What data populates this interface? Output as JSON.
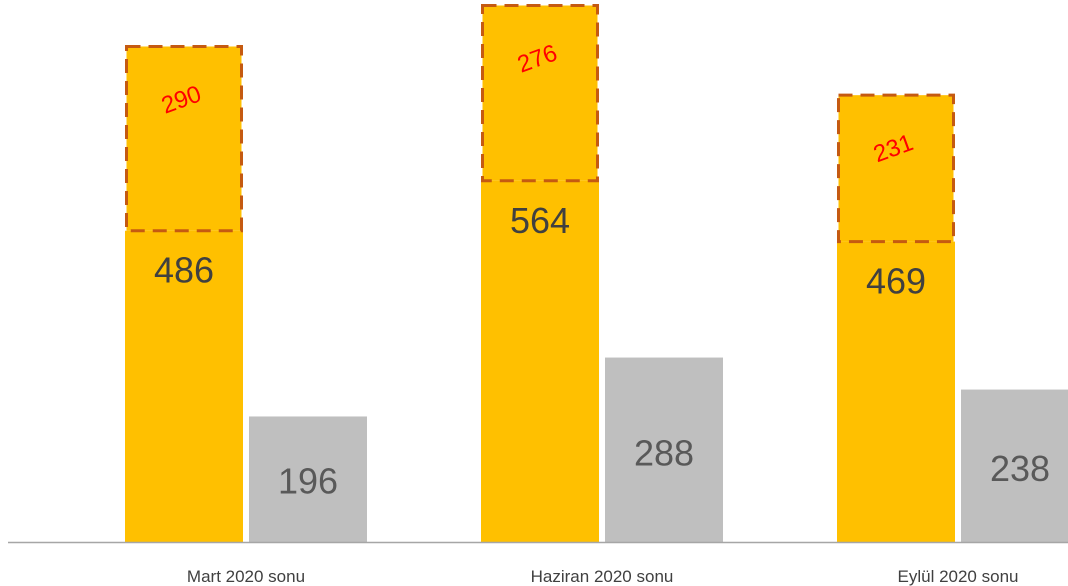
{
  "chart_data": {
    "type": "bar",
    "stacked_first_series": true,
    "categories": [
      "Mart 2020 sonu",
      "Haziran 2020 sonu",
      "Eylül 2020 sonu"
    ],
    "series": [
      {
        "values": [
          486,
          564,
          469
        ],
        "color": "#FFC000",
        "stack": "a"
      },
      {
        "values": [
          290,
          276,
          231
        ],
        "color": "#FFC000",
        "stack": "a",
        "style": "dashed-outline",
        "outline_color": "#C55A11",
        "label_color": "#FF0000",
        "label_rotation": -20
      },
      {
        "values": [
          196,
          288,
          238
        ],
        "color": "#BFBFBF",
        "stack": "b"
      }
    ],
    "ylim": [
      0,
      840
    ],
    "grid": false,
    "legend": "none",
    "title": "",
    "xlabel": "",
    "ylabel": ""
  },
  "colors": {
    "primary_bar": "#FFC000",
    "secondary_bar": "#BFBFBF",
    "outline": "#C55A11",
    "extra_label": "#FF0000",
    "value_label": "#404040",
    "axis": "#A6A6A6",
    "category_label": "#404040"
  }
}
